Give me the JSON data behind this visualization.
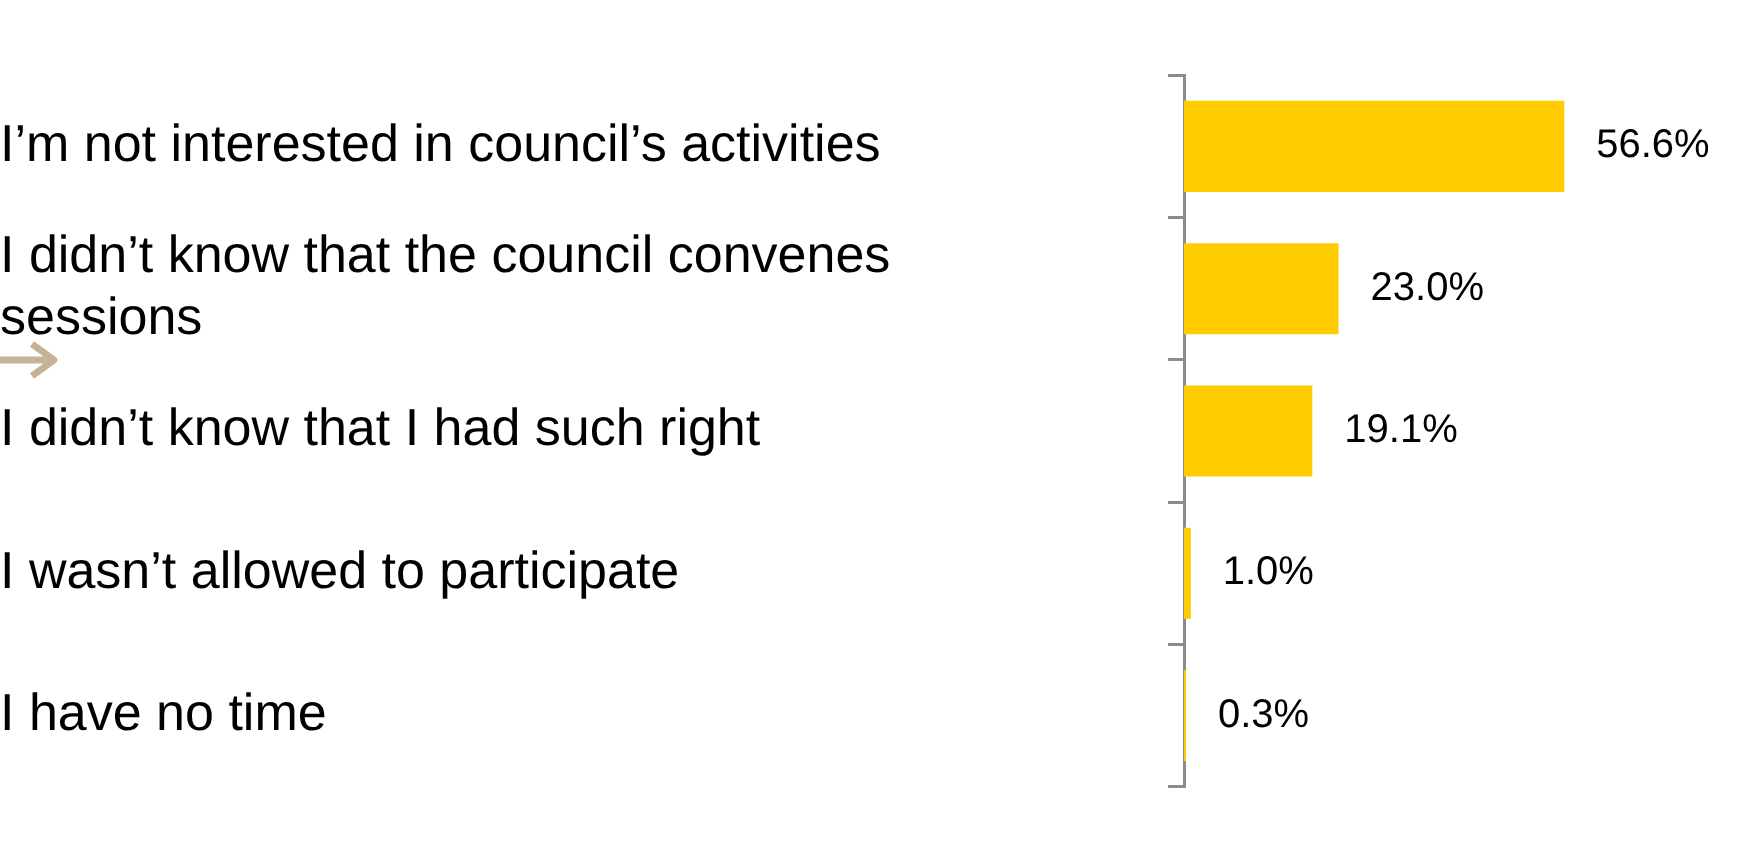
{
  "chart_data": {
    "type": "bar",
    "orientation": "horizontal",
    "categories": [
      "I’m not interested in council’s activities",
      "I didn’t know that the council convenes sessions",
      "I didn’t know that I had such right",
      "I wasn’t allowed to participate",
      "I have no time"
    ],
    "values": [
      56.6,
      23.0,
      19.1,
      1.0,
      0.3
    ],
    "value_labels": [
      "56.6%",
      "23.0%",
      "19.1%",
      "1.0%",
      "0.3%"
    ],
    "color": "#ffcc00",
    "grid": false,
    "legend": false
  }
}
